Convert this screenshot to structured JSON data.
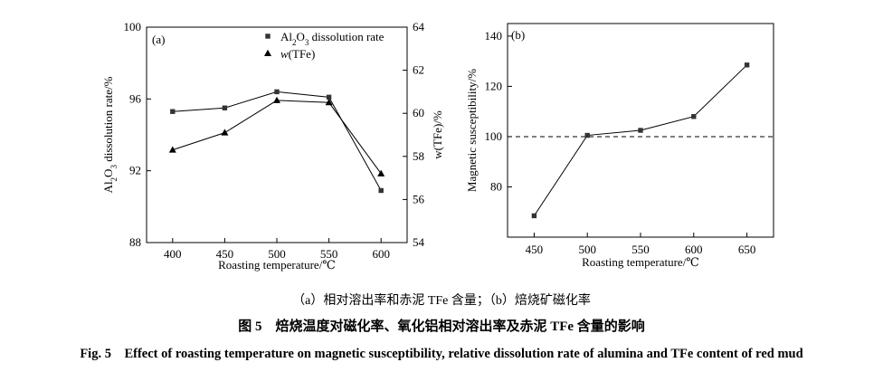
{
  "chart_data": [
    {
      "type": "scatter",
      "panel_label": "(a)",
      "x": [
        400,
        450,
        500,
        550,
        600
      ],
      "xlabel": "Roasting temperature/℃",
      "xlim": [
        375,
        625
      ],
      "xticks": [
        400,
        450,
        500,
        550,
        600
      ],
      "ylabel_left": "Al2O3 dissolution rate/%",
      "ylim_left": [
        88,
        100
      ],
      "yticks_left": [
        88,
        92,
        96,
        100
      ],
      "ylabel_right": "w(TFe)/%",
      "ylim_right": [
        54,
        64
      ],
      "yticks_right": [
        54,
        56,
        58,
        60,
        62,
        64
      ],
      "series": [
        {
          "name": "Al2O3 dissolution rate",
          "axis": "left",
          "marker": "square",
          "values": [
            95.3,
            95.5,
            96.4,
            96.1,
            90.9
          ]
        },
        {
          "name": "w(TFe)",
          "axis": "right",
          "marker": "triangle",
          "values": [
            58.3,
            59.1,
            60.6,
            60.5,
            57.2
          ]
        }
      ],
      "grid": false,
      "legend": "top-right"
    },
    {
      "type": "scatter",
      "panel_label": "(b)",
      "x": [
        450,
        500,
        550,
        600,
        650
      ],
      "xlabel": "Roasting temperature/℃",
      "xlim": [
        425,
        675
      ],
      "xticks": [
        450,
        500,
        550,
        600,
        650
      ],
      "ylabel": "Magnetic susceptibility/%",
      "ylim": [
        60,
        145
      ],
      "yticks": [
        80,
        100,
        120,
        140
      ],
      "reference_line": 100,
      "series": [
        {
          "marker": "square",
          "values": [
            68.5,
            100.5,
            102.5,
            108,
            128.5
          ]
        }
      ],
      "grid": false
    }
  ],
  "captions": {
    "sub": "（a）相对溶出率和赤泥 TFe 含量；（b）焙烧矿磁化率",
    "cn": "图 5　焙烧温度对磁化率、氧化铝相对溶出率及赤泥 TFe 含量的影响",
    "en": "Fig. 5　Effect of roasting temperature on magnetic susceptibility, relative dissolution rate of alumina and TFe content of red mud"
  }
}
